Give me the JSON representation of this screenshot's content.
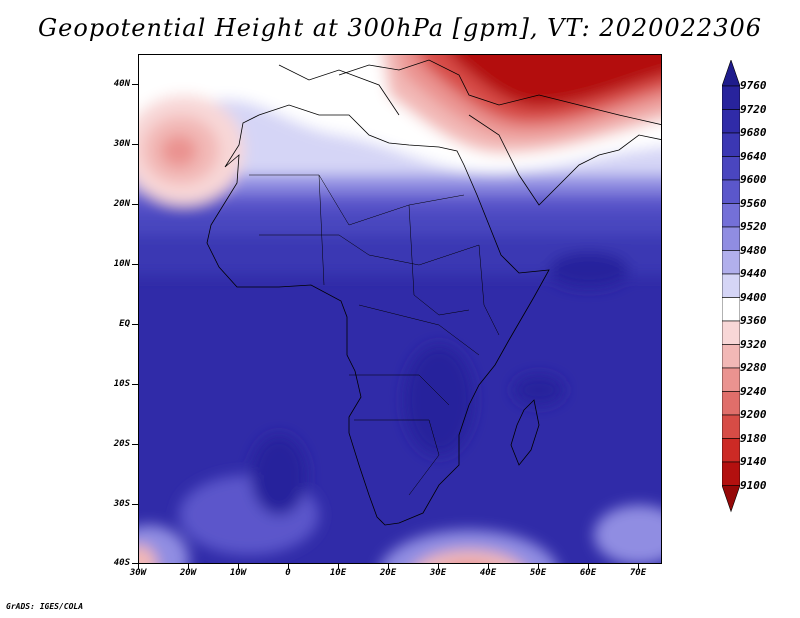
{
  "title": "Geopotential Height at 300hPa [gpm], VT: 2020022306",
  "credit": "GrADS: IGES/COLA",
  "lat_labels": [
    "40N",
    "30N",
    "20N",
    "10N",
    "EQ",
    "10S",
    "20S",
    "30S",
    "40S"
  ],
  "lon_labels": [
    "30W",
    "20W",
    "10W",
    "0",
    "10E",
    "20E",
    "30E",
    "40E",
    "50E",
    "60E",
    "70E"
  ],
  "colorbar": {
    "values": [
      "9760",
      "9720",
      "9680",
      "9640",
      "9600",
      "9560",
      "9520",
      "9480",
      "9440",
      "9400",
      "9360",
      "9320",
      "9280",
      "9240",
      "9200",
      "9180",
      "9140",
      "9100"
    ],
    "colors": [
      "#1f1c8c",
      "#28239c",
      "#302ba8",
      "#3b37b3",
      "#4a46bf",
      "#5b57cb",
      "#7470d8",
      "#908de2",
      "#b1afec",
      "#d5d5f6",
      "#ffffff",
      "#f8d7d7",
      "#f2b8b6",
      "#ea9390",
      "#e06e6a",
      "#d74c46",
      "#cc2a25",
      "#b3100f",
      "#950808"
    ]
  }
}
